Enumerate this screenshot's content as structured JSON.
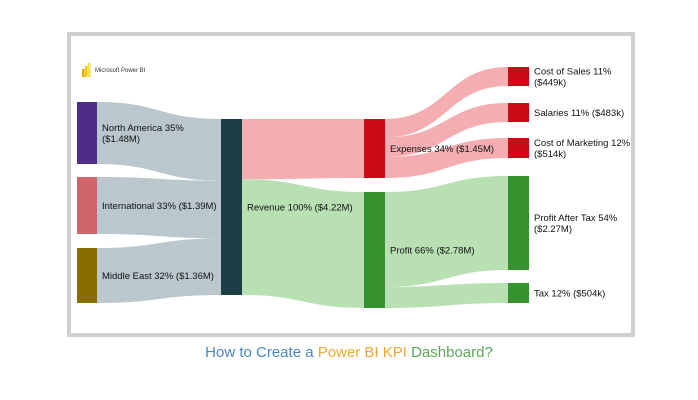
{
  "logo": {
    "text": "Microsoft Power BI",
    "icon": "power-bi-logo-icon",
    "colors": [
      "#e9a900",
      "#f2c811",
      "#f7dd5c"
    ]
  },
  "nodes": [
    {
      "id": "north_america",
      "line1": "North America 35%",
      "line2": "($1.48M)",
      "color": "#4e2d8a"
    },
    {
      "id": "international",
      "line1": "International 33% ($1.39M)",
      "line2": "",
      "color": "#d0646c"
    },
    {
      "id": "middle_east",
      "line1": "Middle East 32% ($1.36M)",
      "line2": "",
      "color": "#8a6d00"
    },
    {
      "id": "revenue",
      "line1": "Revenue 100% ($4.22M)",
      "line2": "",
      "color": "#1c3f45"
    },
    {
      "id": "expenses",
      "line1": "Expenses 34% ($1.45M)",
      "line2": "",
      "color": "#cc0a14"
    },
    {
      "id": "profit",
      "line1": "Profit 66% ($2.78M)",
      "line2": "",
      "color": "#36912f"
    },
    {
      "id": "cost_of_sales",
      "line1": "Cost of Sales 11%",
      "line2": "($449k)",
      "color": "#cc0a14"
    },
    {
      "id": "salaries",
      "line1": "Salaries 11% ($483k)",
      "line2": "",
      "color": "#cc0a14"
    },
    {
      "id": "cost_of_marketing",
      "line1": "Cost of Marketing 12%",
      "line2": "($514k)",
      "color": "#cc0a14"
    },
    {
      "id": "profit_after_tax",
      "line1": "Profit After Tax 54%",
      "line2": "($2.27M)",
      "color": "#36912f"
    },
    {
      "id": "tax",
      "line1": "Tax 12% ($504k)",
      "line2": "",
      "color": "#36912f"
    }
  ],
  "flows": [
    {
      "from": "north_america",
      "to": "revenue",
      "value_millions": 1.48,
      "color": "#a9b9c0"
    },
    {
      "from": "international",
      "to": "revenue",
      "value_millions": 1.39,
      "color": "#a9b9c0"
    },
    {
      "from": "middle_east",
      "to": "revenue",
      "value_millions": 1.36,
      "color": "#a9b9c0"
    },
    {
      "from": "revenue",
      "to": "expenses",
      "value_millions": 1.45,
      "color": "#f19a9e"
    },
    {
      "from": "revenue",
      "to": "profit",
      "value_millions": 2.78,
      "color": "#a6d8a0"
    },
    {
      "from": "expenses",
      "to": "cost_of_sales",
      "value_millions": 0.449,
      "color": "#f19a9e"
    },
    {
      "from": "expenses",
      "to": "salaries",
      "value_millions": 0.483,
      "color": "#f19a9e"
    },
    {
      "from": "expenses",
      "to": "cost_of_marketing",
      "value_millions": 0.514,
      "color": "#f19a9e"
    },
    {
      "from": "profit",
      "to": "profit_after_tax",
      "value_millions": 2.27,
      "color": "#a6d8a0"
    },
    {
      "from": "profit",
      "to": "tax",
      "value_millions": 0.504,
      "color": "#a6d8a0"
    }
  ],
  "caption": {
    "part1": "How to Create a ",
    "part2": "Power BI KPI",
    "part3": " Dashboard?",
    "color1": "#4a86c5",
    "color2": "#f0a830",
    "color3": "#5fa65a"
  }
}
